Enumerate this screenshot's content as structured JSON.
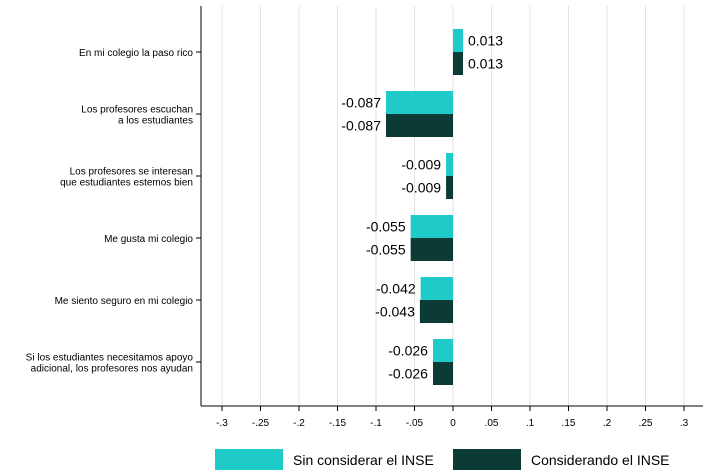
{
  "chart_data": {
    "type": "bar",
    "orientation": "horizontal",
    "categories": [
      [
        "En mi colegio la paso rico"
      ],
      [
        "Los profesores escuchan",
        "a los estudiantes"
      ],
      [
        "Los profesores se interesan",
        "que estudiantes estemos bien"
      ],
      [
        "Me gusta mi colegio"
      ],
      [
        "Me siento seguro en mi colegio"
      ],
      [
        "Si los estudiantes necesitamos apoyo",
        "adicional, los profesores nos ayudan"
      ]
    ],
    "series": [
      {
        "name": "Sin considerar el INSE",
        "color": "#1ecbc8",
        "values": [
          0.013,
          -0.087,
          -0.009,
          -0.055,
          -0.042,
          -0.026
        ],
        "labels": [
          "0.013",
          "-0.087",
          "-0.009",
          "-0.055",
          "-0.042",
          "-0.026"
        ]
      },
      {
        "name": "Considerando el INSE",
        "color": "#0b3b34",
        "values": [
          0.013,
          -0.087,
          -0.009,
          -0.055,
          -0.043,
          -0.026
        ],
        "labels": [
          "0.013",
          "-0.087",
          "-0.009",
          "-0.055",
          "-0.043",
          "-0.026"
        ]
      }
    ],
    "xlim": [
      -0.3,
      0.3
    ],
    "xticks": [
      -0.3,
      -0.25,
      -0.2,
      -0.15,
      -0.1,
      -0.05,
      0,
      0.05,
      0.1,
      0.15,
      0.2,
      0.25,
      0.3
    ],
    "xtick_labels": [
      "-.3",
      "-.25",
      "-.2",
      "-.15",
      "-.1",
      "-.05",
      "0",
      ".05",
      ".1",
      ".15",
      ".2",
      ".25",
      ".3"
    ],
    "grid": "vertical",
    "legend_position": "bottom"
  }
}
